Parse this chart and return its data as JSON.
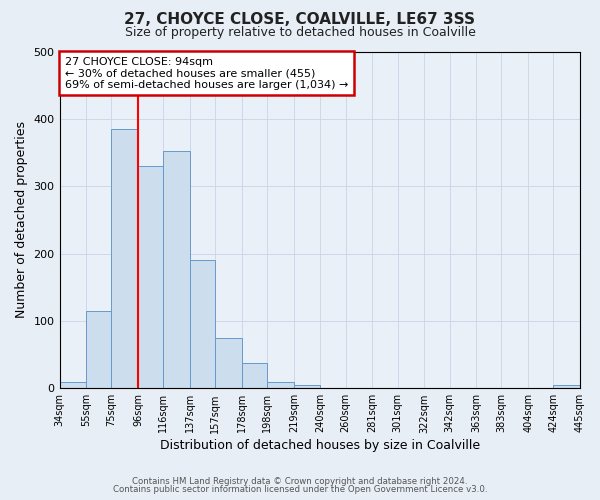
{
  "title": "27, CHOYCE CLOSE, COALVILLE, LE67 3SS",
  "subtitle": "Size of property relative to detached houses in Coalville",
  "xlabel": "Distribution of detached houses by size in Coalville",
  "ylabel": "Number of detached properties",
  "bin_edges": [
    34,
    55,
    75,
    96,
    116,
    137,
    157,
    178,
    198,
    219,
    240,
    260,
    281,
    301,
    322,
    342,
    363,
    383,
    404,
    424,
    445
  ],
  "bar_heights": [
    10,
    115,
    385,
    330,
    352,
    190,
    75,
    38,
    10,
    5,
    0,
    0,
    0,
    0,
    0,
    0,
    0,
    0,
    0,
    5
  ],
  "bar_color": "#ccdded",
  "bar_edge_color": "#6699cc",
  "ylim": [
    0,
    500
  ],
  "red_line_x": 96,
  "annotation_title": "27 CHOYCE CLOSE: 94sqm",
  "annotation_line1": "← 30% of detached houses are smaller (455)",
  "annotation_line2": "69% of semi-detached houses are larger (1,034) →",
  "annotation_box_color": "#ffffff",
  "annotation_box_edge_color": "#cc0000",
  "footer_line1": "Contains HM Land Registry data © Crown copyright and database right 2024.",
  "footer_line2": "Contains public sector information licensed under the Open Government Licence v3.0.",
  "background_color": "#e8eef5",
  "plot_background_color": "#eaf0f8",
  "grid_color": "#c8d5e5",
  "title_fontsize": 11,
  "subtitle_fontsize": 9,
  "tick_labels": [
    "34sqm",
    "55sqm",
    "75sqm",
    "96sqm",
    "116sqm",
    "137sqm",
    "157sqm",
    "178sqm",
    "198sqm",
    "219sqm",
    "240sqm",
    "260sqm",
    "281sqm",
    "301sqm",
    "322sqm",
    "342sqm",
    "363sqm",
    "383sqm",
    "404sqm",
    "424sqm",
    "445sqm"
  ]
}
